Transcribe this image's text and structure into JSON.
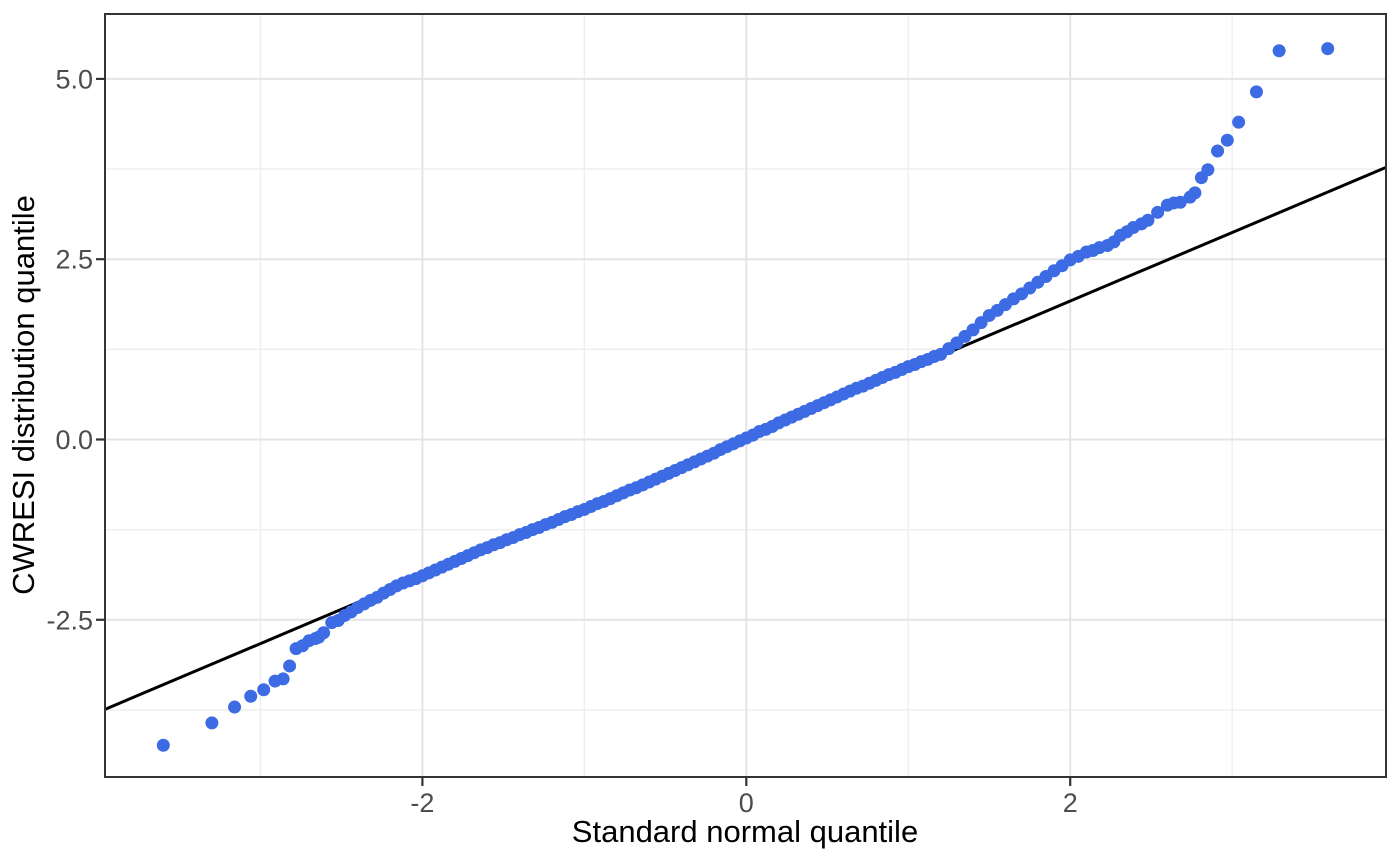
{
  "chart_data": {
    "type": "scatter",
    "title": "",
    "xlabel": "Standard normal quantile",
    "ylabel": "CWRESI distribution quantile",
    "xlim": [
      -3.96,
      3.95
    ],
    "ylim": [
      -4.68,
      5.9
    ],
    "grid": "on",
    "legend": "none",
    "x_ticks": [
      {
        "value": -2,
        "label": "-2"
      },
      {
        "value": 0,
        "label": "0"
      },
      {
        "value": 2,
        "label": "2"
      }
    ],
    "y_ticks": [
      {
        "value": 5,
        "label": "5.0"
      },
      {
        "value": 2.5,
        "label": "2.5"
      },
      {
        "value": 0,
        "label": "0.0"
      },
      {
        "value": -2.5,
        "label": "-2.5"
      }
    ],
    "x_minor_gridlines": [
      -3,
      -1,
      1,
      3
    ],
    "y_minor_gridlines": [
      3.75,
      1.25,
      -1.25,
      -3.75
    ],
    "reference_line": {
      "slope": 0.95,
      "intercept": 0.02
    },
    "styles": {
      "point_color": "#3D6BE4",
      "point_radius": 6.5,
      "reference_line_color": "#000000",
      "reference_line_width": 3,
      "grid_major_color": "#E4E4E4",
      "grid_minor_color": "#EEEEEE",
      "panel_border_color": "#343434",
      "tick_mark_color": "#333333",
      "tick_label_color": "#4D4D4D",
      "axis_title_color": "#000000"
    },
    "points": [
      [
        -3.6,
        -4.24
      ],
      [
        -3.3,
        -3.93
      ],
      [
        -3.16,
        -3.71
      ],
      [
        -3.06,
        -3.56
      ],
      [
        -2.98,
        -3.47
      ],
      [
        -2.91,
        -3.35
      ],
      [
        -2.86,
        -3.32
      ],
      [
        -2.82,
        -3.14
      ],
      [
        -2.78,
        -2.9
      ],
      [
        -2.74,
        -2.86
      ],
      [
        -2.7,
        -2.79
      ],
      [
        -2.66,
        -2.76
      ],
      [
        -2.64,
        -2.74
      ],
      [
        -2.61,
        -2.68
      ],
      [
        -2.56,
        -2.54
      ],
      [
        -2.52,
        -2.51
      ],
      [
        -2.48,
        -2.44
      ],
      [
        -2.44,
        -2.39
      ],
      [
        -2.4,
        -2.33
      ],
      [
        -2.36,
        -2.28
      ],
      [
        -2.32,
        -2.23
      ],
      [
        -2.28,
        -2.19
      ],
      [
        -2.24,
        -2.13
      ],
      [
        -2.2,
        -2.08
      ],
      [
        -2.16,
        -2.03
      ],
      [
        -2.12,
        -1.99
      ],
      [
        -2.08,
        -1.96
      ],
      [
        -2.04,
        -1.93
      ],
      [
        -2.0,
        -1.89
      ],
      [
        -1.96,
        -1.85
      ],
      [
        -1.92,
        -1.81
      ],
      [
        -1.88,
        -1.77
      ],
      [
        -1.84,
        -1.73
      ],
      [
        -1.8,
        -1.69
      ],
      [
        -1.76,
        -1.65
      ],
      [
        -1.72,
        -1.61
      ],
      [
        -1.68,
        -1.57
      ],
      [
        -1.64,
        -1.53
      ],
      [
        -1.6,
        -1.5
      ],
      [
        -1.56,
        -1.46
      ],
      [
        -1.52,
        -1.43
      ],
      [
        -1.48,
        -1.39
      ],
      [
        -1.44,
        -1.36
      ],
      [
        -1.4,
        -1.32
      ],
      [
        -1.36,
        -1.29
      ],
      [
        -1.32,
        -1.25
      ],
      [
        -1.28,
        -1.22
      ],
      [
        -1.24,
        -1.18
      ],
      [
        -1.2,
        -1.15
      ],
      [
        -1.16,
        -1.11
      ],
      [
        -1.12,
        -1.07
      ],
      [
        -1.08,
        -1.04
      ],
      [
        -1.04,
        -1.0
      ],
      [
        -1.0,
        -0.97
      ],
      [
        -0.96,
        -0.93
      ],
      [
        -0.92,
        -0.89
      ],
      [
        -0.88,
        -0.86
      ],
      [
        -0.84,
        -0.82
      ],
      [
        -0.8,
        -0.78
      ],
      [
        -0.76,
        -0.74
      ],
      [
        -0.72,
        -0.7
      ],
      [
        -0.68,
        -0.67
      ],
      [
        -0.64,
        -0.63
      ],
      [
        -0.6,
        -0.59
      ],
      [
        -0.56,
        -0.55
      ],
      [
        -0.52,
        -0.51
      ],
      [
        -0.48,
        -0.47
      ],
      [
        -0.44,
        -0.43
      ],
      [
        -0.4,
        -0.39
      ],
      [
        -0.36,
        -0.35
      ],
      [
        -0.32,
        -0.31
      ],
      [
        -0.28,
        -0.27
      ],
      [
        -0.24,
        -0.23
      ],
      [
        -0.2,
        -0.19
      ],
      [
        -0.16,
        -0.14
      ],
      [
        -0.12,
        -0.1
      ],
      [
        -0.08,
        -0.06
      ],
      [
        -0.04,
        -0.02
      ],
      [
        0.0,
        0.02
      ],
      [
        0.04,
        0.06
      ],
      [
        0.08,
        0.11
      ],
      [
        0.12,
        0.14
      ],
      [
        0.16,
        0.18
      ],
      [
        0.2,
        0.23
      ],
      [
        0.24,
        0.27
      ],
      [
        0.28,
        0.31
      ],
      [
        0.32,
        0.35
      ],
      [
        0.36,
        0.39
      ],
      [
        0.4,
        0.43
      ],
      [
        0.44,
        0.47
      ],
      [
        0.48,
        0.51
      ],
      [
        0.52,
        0.55
      ],
      [
        0.56,
        0.59
      ],
      [
        0.6,
        0.63
      ],
      [
        0.64,
        0.67
      ],
      [
        0.68,
        0.71
      ],
      [
        0.72,
        0.74
      ],
      [
        0.76,
        0.78
      ],
      [
        0.8,
        0.82
      ],
      [
        0.84,
        0.86
      ],
      [
        0.88,
        0.9
      ],
      [
        0.92,
        0.93
      ],
      [
        0.96,
        0.97
      ],
      [
        1.0,
        1.01
      ],
      [
        1.04,
        1.04
      ],
      [
        1.08,
        1.08
      ],
      [
        1.12,
        1.11
      ],
      [
        1.16,
        1.15
      ],
      [
        1.2,
        1.18
      ],
      [
        1.25,
        1.26
      ],
      [
        1.3,
        1.34
      ],
      [
        1.35,
        1.43
      ],
      [
        1.4,
        1.52
      ],
      [
        1.45,
        1.62
      ],
      [
        1.5,
        1.72
      ],
      [
        1.55,
        1.79
      ],
      [
        1.6,
        1.87
      ],
      [
        1.65,
        1.95
      ],
      [
        1.7,
        2.02
      ],
      [
        1.75,
        2.1
      ],
      [
        1.8,
        2.18
      ],
      [
        1.85,
        2.26
      ],
      [
        1.9,
        2.34
      ],
      [
        1.95,
        2.41
      ],
      [
        2.0,
        2.49
      ],
      [
        2.05,
        2.54
      ],
      [
        2.1,
        2.6
      ],
      [
        2.14,
        2.62
      ],
      [
        2.18,
        2.66
      ],
      [
        2.23,
        2.69
      ],
      [
        2.27,
        2.74
      ],
      [
        2.31,
        2.83
      ],
      [
        2.35,
        2.88
      ],
      [
        2.39,
        2.94
      ],
      [
        2.44,
        2.99
      ],
      [
        2.48,
        3.04
      ],
      [
        2.54,
        3.15
      ],
      [
        2.6,
        3.25
      ],
      [
        2.64,
        3.28
      ],
      [
        2.68,
        3.29
      ],
      [
        2.74,
        3.36
      ],
      [
        2.77,
        3.42
      ],
      [
        2.81,
        3.63
      ],
      [
        2.85,
        3.74
      ],
      [
        2.91,
        4.0
      ],
      [
        2.97,
        4.15
      ],
      [
        3.04,
        4.4
      ],
      [
        3.15,
        4.82
      ],
      [
        3.29,
        5.39
      ],
      [
        3.59,
        5.42
      ]
    ]
  }
}
